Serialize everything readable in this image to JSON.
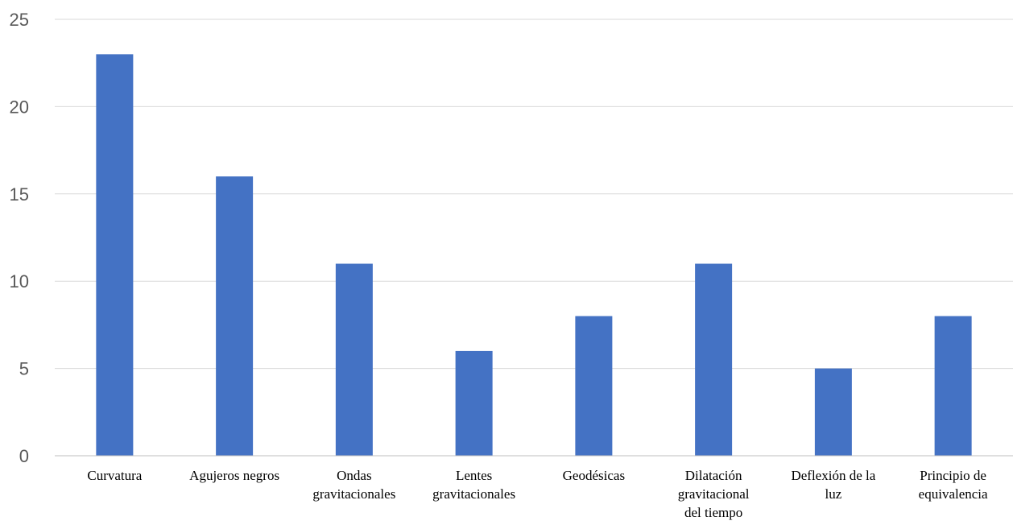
{
  "chart_data": {
    "type": "bar",
    "categories": [
      [
        "Curvatura"
      ],
      [
        "Agujeros negros"
      ],
      [
        "Ondas",
        "gravitacionales"
      ],
      [
        "Lentes",
        "gravitacionales"
      ],
      [
        "Geodésicas"
      ],
      [
        "Dilatación",
        "gravitacional",
        "del tiempo"
      ],
      [
        "Deflexión de la",
        "luz"
      ],
      [
        "Principio de",
        "equivalencia"
      ]
    ],
    "values": [
      23,
      16,
      11,
      6,
      8,
      11,
      5,
      8
    ],
    "title": "",
    "xlabel": "",
    "ylabel": "",
    "ylim": [
      0,
      25
    ],
    "yticks": [
      0,
      5,
      10,
      15,
      20,
      25
    ],
    "grid": true,
    "legend": "none",
    "bar_color": "#4472c4"
  }
}
